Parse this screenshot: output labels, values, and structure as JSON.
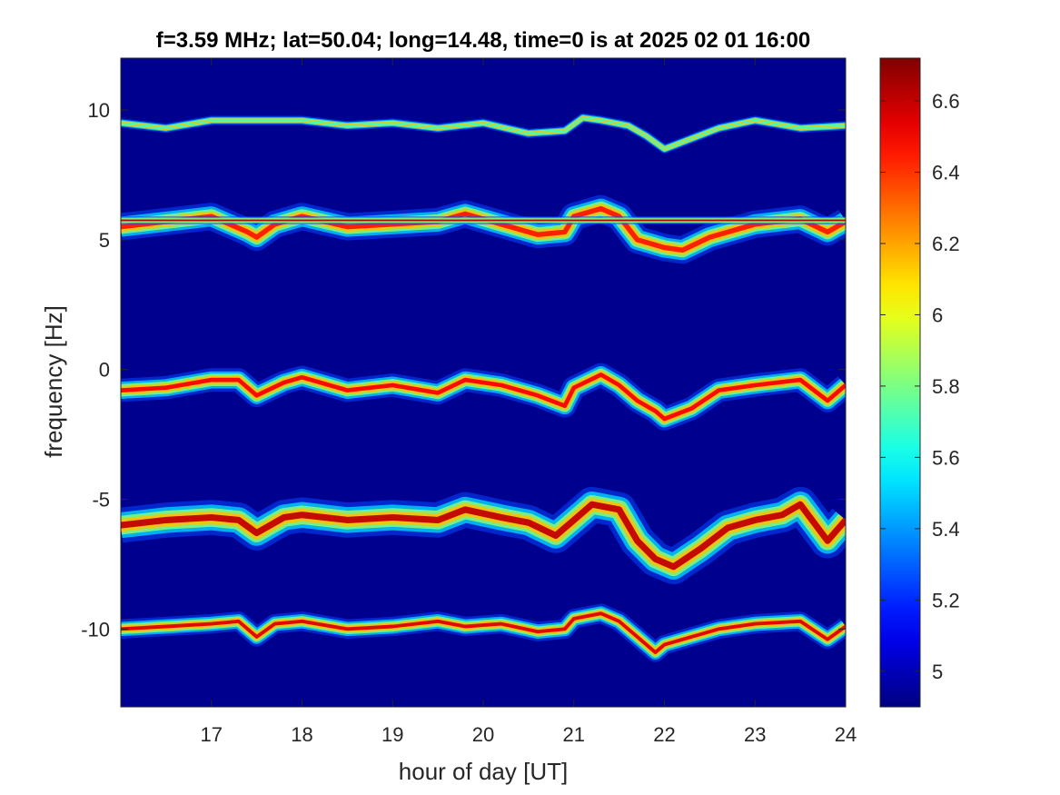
{
  "chart_data": {
    "type": "heatmap",
    "title": "f=3.59 MHz;  lat=50.04; long=14.48, time=0 is at 2025 02 01 16:00",
    "xlabel": "hour of day [UT]",
    "ylabel": "frequency [Hz]",
    "xlim": [
      16.0,
      24.0
    ],
    "ylim": [
      -13.0,
      12.0
    ],
    "x_ticks": [
      17,
      18,
      19,
      20,
      21,
      22,
      23,
      24
    ],
    "y_ticks": [
      10,
      5,
      0,
      -5,
      -10
    ],
    "colorbar": {
      "range": [
        4.9,
        6.72
      ],
      "ticks": [
        6.6,
        6.4,
        6.2,
        6.0,
        5.8,
        5.6,
        5.4,
        5.2,
        5.0
      ],
      "tick_labels": [
        "6.6",
        "6.4",
        "6.2",
        "6",
        "5.8",
        "5.6",
        "5.4",
        "5.2",
        "5"
      ],
      "colormap": "jet"
    },
    "background_value": 4.95,
    "background_color": "#00008F",
    "grid": false,
    "series": [
      {
        "center_hz": 9.4,
        "intensity": 5.7,
        "width_hz": 0.12,
        "x": [
          16.0,
          16.5,
          17.0,
          17.5,
          18.0,
          18.5,
          19.0,
          19.5,
          20.0,
          20.5,
          20.9,
          21.1,
          21.3,
          21.6,
          21.8,
          22.0,
          22.3,
          22.6,
          23.0,
          23.5,
          24.0
        ],
        "y": [
          9.5,
          9.3,
          9.6,
          9.6,
          9.6,
          9.4,
          9.5,
          9.3,
          9.5,
          9.1,
          9.2,
          9.7,
          9.6,
          9.4,
          9.0,
          8.5,
          8.9,
          9.3,
          9.6,
          9.3,
          9.4
        ]
      },
      {
        "center_hz": 5.7,
        "intensity": 6.45,
        "width_hz": 0.35,
        "x": [
          16.0,
          16.5,
          17.0,
          17.4,
          17.5,
          17.7,
          18.0,
          18.5,
          19.0,
          19.5,
          19.8,
          20.2,
          20.6,
          20.9,
          21.0,
          21.3,
          21.5,
          21.7,
          22.0,
          22.2,
          22.5,
          23.0,
          23.5,
          23.8,
          24.0
        ],
        "y": [
          5.5,
          5.7,
          5.9,
          5.3,
          5.1,
          5.6,
          5.9,
          5.5,
          5.6,
          5.7,
          6.0,
          5.6,
          5.2,
          5.3,
          5.9,
          6.2,
          5.9,
          5.0,
          4.7,
          4.6,
          5.1,
          5.6,
          5.8,
          5.3,
          5.7
        ]
      },
      {
        "center_hz": 5.75,
        "intensity": 6.65,
        "width_hz": 0.08,
        "x": [
          16.0,
          24.0
        ],
        "y": [
          5.75,
          5.75
        ]
      },
      {
        "center_hz": -0.6,
        "intensity": 6.5,
        "width_hz": 0.3,
        "x": [
          16.0,
          16.5,
          17.0,
          17.3,
          17.5,
          17.8,
          18.0,
          18.5,
          19.0,
          19.5,
          19.8,
          20.2,
          20.6,
          20.9,
          21.0,
          21.3,
          21.5,
          21.7,
          21.9,
          22.0,
          22.3,
          22.6,
          23.0,
          23.5,
          23.8,
          24.0
        ],
        "y": [
          -0.8,
          -0.7,
          -0.4,
          -0.4,
          -1.0,
          -0.5,
          -0.3,
          -0.8,
          -0.6,
          -0.9,
          -0.4,
          -0.6,
          -1.0,
          -1.4,
          -0.7,
          -0.2,
          -0.6,
          -1.2,
          -1.6,
          -1.9,
          -1.5,
          -0.8,
          -0.6,
          -0.4,
          -1.2,
          -0.6
        ]
      },
      {
        "center_hz": -5.8,
        "intensity": 6.6,
        "width_hz": 0.45,
        "x": [
          16.0,
          16.5,
          17.0,
          17.3,
          17.5,
          17.8,
          18.0,
          18.5,
          19.0,
          19.5,
          19.8,
          20.2,
          20.5,
          20.8,
          21.0,
          21.2,
          21.5,
          21.7,
          21.9,
          22.1,
          22.4,
          22.7,
          23.0,
          23.3,
          23.5,
          23.8,
          24.0
        ],
        "y": [
          -6.0,
          -5.8,
          -5.7,
          -5.8,
          -6.3,
          -5.7,
          -5.6,
          -5.8,
          -5.7,
          -5.8,
          -5.4,
          -5.7,
          -5.9,
          -6.4,
          -5.8,
          -5.2,
          -5.4,
          -6.6,
          -7.3,
          -7.6,
          -6.9,
          -6.1,
          -5.8,
          -5.6,
          -5.2,
          -6.6,
          -5.8
        ]
      },
      {
        "center_hz": -9.9,
        "intensity": 6.55,
        "width_hz": 0.25,
        "x": [
          16.0,
          16.5,
          17.0,
          17.3,
          17.5,
          17.7,
          18.0,
          18.5,
          19.0,
          19.5,
          19.8,
          20.2,
          20.6,
          20.9,
          21.0,
          21.3,
          21.5,
          21.7,
          21.9,
          22.0,
          22.3,
          22.6,
          23.0,
          23.5,
          23.8,
          24.0
        ],
        "y": [
          -10.0,
          -9.9,
          -9.8,
          -9.7,
          -10.3,
          -9.8,
          -9.7,
          -10.0,
          -9.9,
          -9.7,
          -9.9,
          -9.8,
          -10.1,
          -10.0,
          -9.6,
          -9.4,
          -9.7,
          -10.3,
          -10.9,
          -10.6,
          -10.3,
          -10.0,
          -9.8,
          -9.7,
          -10.4,
          -9.9
        ]
      }
    ]
  }
}
